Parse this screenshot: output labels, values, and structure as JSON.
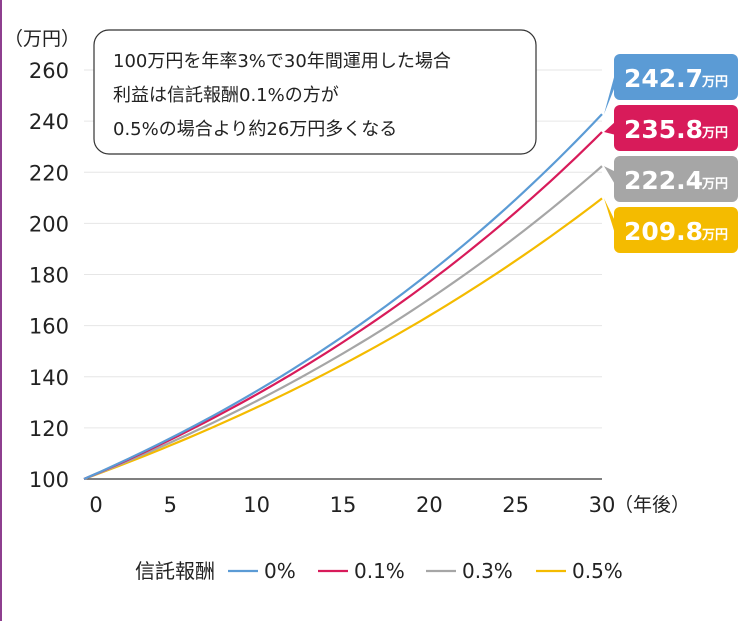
{
  "chart_data": {
    "type": "line",
    "y_unit": "（万円）",
    "x_unit": "（年後）",
    "x_ticks": [
      0,
      5,
      10,
      15,
      20,
      25,
      30
    ],
    "y_ticks": [
      100,
      120,
      140,
      160,
      180,
      200,
      220,
      240,
      260
    ],
    "xlim": [
      0,
      30
    ],
    "ylim": [
      100,
      260
    ],
    "grid": "horizontal",
    "principal": 100,
    "annual_return": 0.03,
    "years": 30,
    "legend_title": "信託報酬",
    "series": [
      {
        "name": "0%",
        "fee": 0.0,
        "color": "#5b9bd5",
        "final_value": "242.7",
        "unit": "万円"
      },
      {
        "name": "0.1%",
        "fee": 0.001,
        "color": "#d81b5a",
        "final_value": "235.8",
        "unit": "万円"
      },
      {
        "name": "0.3%",
        "fee": 0.003,
        "color": "#a6a6a6",
        "final_value": "222.4",
        "unit": "万円"
      },
      {
        "name": "0.5%",
        "fee": 0.005,
        "color": "#f4bb00",
        "final_value": "209.8",
        "unit": "万円"
      }
    ],
    "annotation": {
      "lines": [
        "100万円を年率3%で30年間運用した場合",
        "利益は信託報酬0.1%の方が",
        "0.5%の場合より約26万円多くなる"
      ]
    }
  }
}
